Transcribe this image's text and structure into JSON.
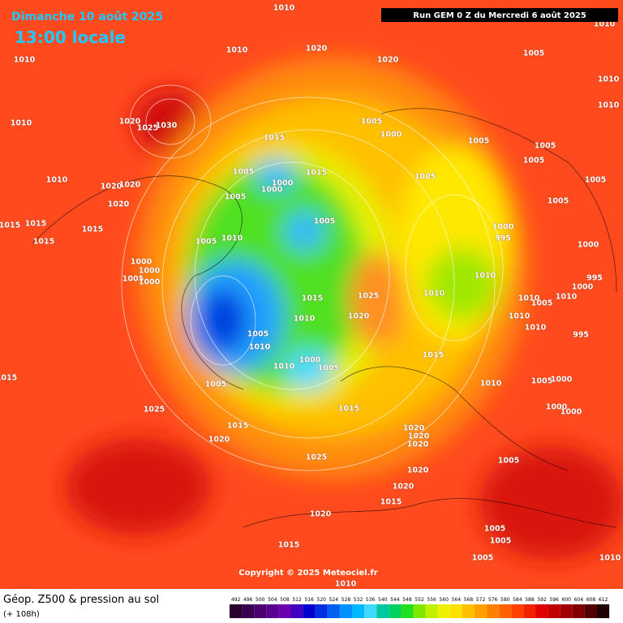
{
  "header": {
    "date": "Dimanche 10 août 2025",
    "time": "13:00 locale",
    "run": "Run GEM 0 Z du Mercredi 6 août 2025"
  },
  "copyright": "Copyright © 2025 Meteociel.fr",
  "legend": {
    "title": "Géop. Z500 & pression au sol",
    "lead": "(+ 108h)",
    "values": [
      492,
      496,
      500,
      504,
      508,
      512,
      516,
      520,
      524,
      528,
      532,
      536,
      540,
      544,
      548,
      552,
      556,
      560,
      564,
      568,
      572,
      576,
      580,
      584,
      588,
      592,
      596,
      600,
      604,
      608,
      612
    ],
    "colors": [
      "#2a0030",
      "#3a0050",
      "#4b0070",
      "#5a0090",
      "#6a00b0",
      "#4000c0",
      "#0000d0",
      "#0030e0",
      "#0060f0",
      "#0090ff",
      "#00b8ff",
      "#40d8ff",
      "#00c8a0",
      "#00d060",
      "#20e020",
      "#80e800",
      "#c0f000",
      "#f0f000",
      "#ffe000",
      "#ffc000",
      "#ffa000",
      "#ff8000",
      "#ff6000",
      "#ff4000",
      "#f02000",
      "#e00000",
      "#c00000",
      "#a00000",
      "#800000",
      "#500000",
      "#200000"
    ]
  },
  "isobar_labels": [
    "1010",
    "1010",
    "1010",
    "1010",
    "1020",
    "1020",
    "1005",
    "1010",
    "1010",
    "1010",
    "1020",
    "1025",
    "1030",
    "1005",
    "1000",
    "1015",
    "1005",
    "1005",
    "1005",
    "1005",
    "1015",
    "1000",
    "1000",
    "1005",
    "1005",
    "1010",
    "1020",
    "1020",
    "1020",
    "1005",
    "1005",
    "1005",
    "1015",
    "1015",
    "1015",
    "1000",
    "995",
    "1010",
    "1005",
    "1015",
    "1000",
    "1000",
    "1000",
    "1005",
    "1000",
    "1010",
    "995",
    "1025",
    "1010",
    "1015",
    "1000",
    "1010",
    "1010",
    "1005",
    "1020",
    "1010",
    "1010",
    "1010",
    "995",
    "1005",
    "1010",
    "1015",
    "1000",
    "1005",
    "1010",
    "1010",
    "1005",
    "1015",
    "1025",
    "1015",
    "1015",
    "1020",
    "1020",
    "1020",
    "1020",
    "1025",
    "1005",
    "1020",
    "1020",
    "1015",
    "1020",
    "1015",
    "1005",
    "1005",
    "1005",
    "1010",
    "1010",
    "1000",
    "1000",
    "1005",
    "1000"
  ]
}
